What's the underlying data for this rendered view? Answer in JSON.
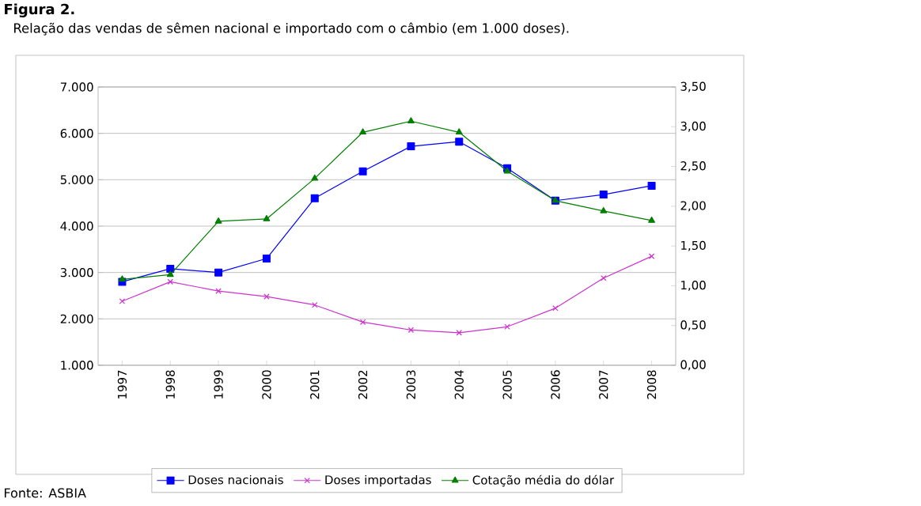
{
  "chart_data": {
    "type": "line",
    "title": "Figura 2.",
    "subtitle": "Relação das vendas de sêmen nacional e importado com o câmbio (em 1.000 doses).",
    "categories": [
      "1997",
      "1998",
      "1999",
      "2000",
      "2001",
      "2002",
      "2003",
      "2004",
      "2005",
      "2006",
      "2007",
      "2008"
    ],
    "series": [
      {
        "name": "Doses nacionais",
        "color": "#0000ff",
        "marker": "square",
        "values": [
          2800,
          3080,
          3000,
          3300,
          4600,
          5180,
          5720,
          5820,
          5250,
          4550,
          4680,
          4870
        ]
      },
      {
        "name": "Doses importadas",
        "color": "#cc33cc",
        "marker": "cross",
        "values": [
          2380,
          2800,
          2600,
          2480,
          2300,
          1930,
          1760,
          1700,
          1830,
          2230,
          2880,
          3350
        ]
      },
      {
        "name": "Cotação média do dólar",
        "color": "#007f00",
        "marker": "triangle",
        "axis": "y2",
        "values": [
          1.08,
          1.14,
          1.81,
          1.84,
          2.35,
          2.93,
          3.07,
          2.93,
          2.44,
          2.07,
          1.94,
          1.82
        ]
      }
    ],
    "ylim": [
      1000,
      7000
    ],
    "yticks": [
      {
        "value": 1000,
        "label": "1.000"
      },
      {
        "value": 2000,
        "label": "2.000"
      },
      {
        "value": 3000,
        "label": "3.000"
      },
      {
        "value": 4000,
        "label": "4.000"
      },
      {
        "value": 5000,
        "label": "5.000"
      },
      {
        "value": 6000,
        "label": "6.000"
      },
      {
        "value": 7000,
        "label": "7.000"
      }
    ],
    "y2lim": [
      0,
      3.5
    ],
    "y2ticks": [
      {
        "value": 0,
        "label": "0,00"
      },
      {
        "value": 0.5,
        "label": "0,50"
      },
      {
        "value": 1,
        "label": "1,00"
      },
      {
        "value": 1.5,
        "label": "1,50"
      },
      {
        "value": 2,
        "label": "2,00"
      },
      {
        "value": 2.5,
        "label": "2,50"
      },
      {
        "value": 3,
        "label": "3,00"
      },
      {
        "value": 3.5,
        "label": "3,50"
      }
    ],
    "grid": "y",
    "legend": "bottom",
    "annotations": [
      "Fonte: ASBIA"
    ]
  }
}
